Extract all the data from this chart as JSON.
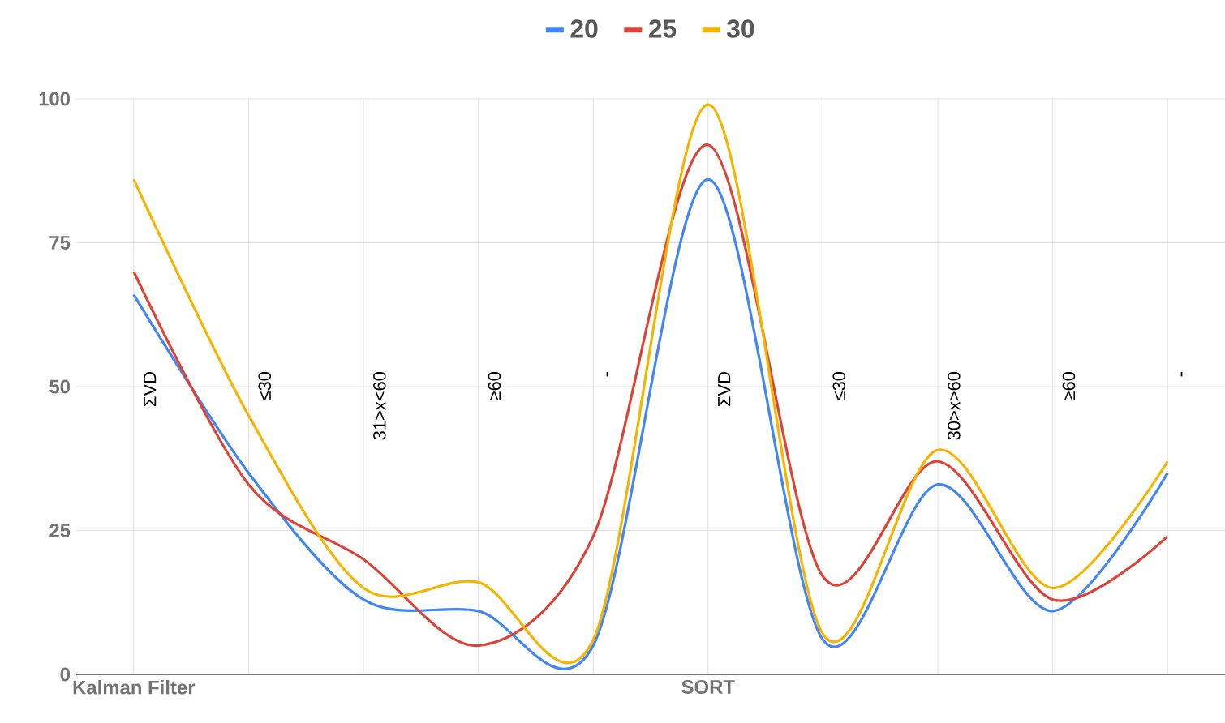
{
  "chart_data": {
    "type": "line",
    "categories": [
      "Kalman Filter",
      null,
      null,
      null,
      null,
      "SORT",
      null,
      null,
      null,
      null
    ],
    "series": [
      {
        "name": "20",
        "color": "#4285f4",
        "values": [
          66,
          35,
          13,
          11,
          5,
          86,
          6,
          33,
          11,
          35
        ]
      },
      {
        "name": "25",
        "color": "#db4437",
        "values": [
          70,
          33,
          20,
          5,
          24,
          92,
          17,
          37,
          13,
          24
        ]
      },
      {
        "name": "30",
        "color": "#f4b400",
        "values": [
          86,
          45,
          15,
          16,
          6,
          99,
          7,
          39,
          15,
          37
        ]
      }
    ],
    "annotations": [
      "ΣVD",
      "≤30",
      "31>x<60",
      "≥60",
      "-",
      "ΣVD",
      "≤30",
      "30>x>60",
      "≥60",
      "-"
    ],
    "ylim": [
      0,
      100
    ],
    "yticks": [
      0,
      25,
      50,
      75,
      100
    ],
    "grid": true,
    "legend": "top",
    "line_style": "solid",
    "marker": "none"
  }
}
